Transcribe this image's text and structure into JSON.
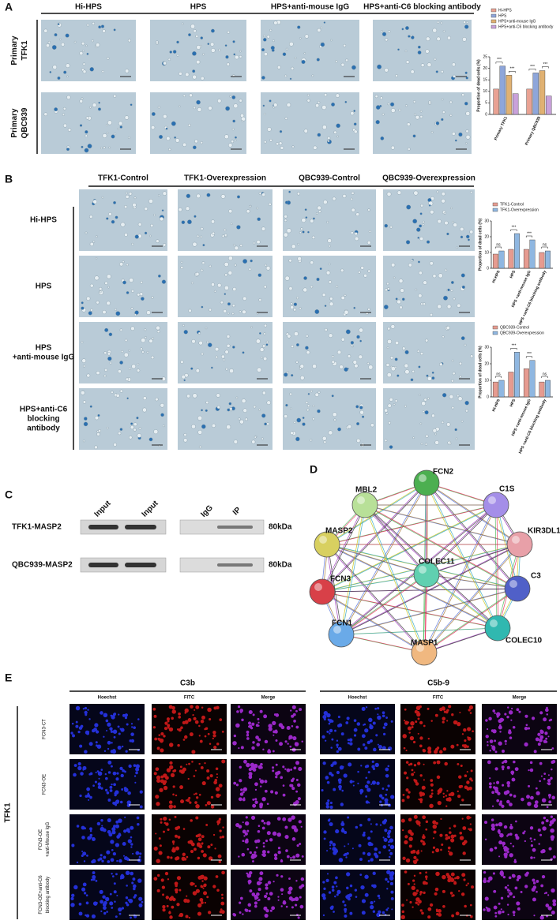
{
  "chart_data": [
    {
      "type": "bar",
      "y_label": "Proportion of dead cells (%)",
      "categories": [
        "Primary TFK1",
        "Primary QBC939"
      ],
      "series": [
        {
          "name": "Hi-HPS",
          "color": "#e9a293",
          "values": [
            11,
            11
          ]
        },
        {
          "name": "HPS",
          "color": "#8ea6da",
          "values": [
            21,
            18
          ]
        },
        {
          "name": "HPS+anti-mouse IgG",
          "color": "#e0b172",
          "values": [
            17,
            19
          ]
        },
        {
          "name": "HPS+anti-C6 blocking antibody",
          "color": "#c9a2da",
          "values": [
            9,
            8
          ]
        }
      ],
      "annotations": [
        "***",
        "***",
        "***",
        "***"
      ],
      "ylim": [
        0,
        25
      ],
      "yticks": [
        0,
        5,
        10,
        15,
        20,
        25
      ]
    },
    {
      "type": "bar",
      "y_label": "Proportion of dead cells (%)",
      "categories": [
        "Hi-HPS",
        "HPS",
        "HPS +anti-mouse IgG",
        "HPS +anti-C6 blocking antibody"
      ],
      "series": [
        {
          "name": "TFK1-Control",
          "color": "#e69b90",
          "values": [
            9,
            12,
            12,
            10
          ]
        },
        {
          "name": "TFK1-Overexpression",
          "color": "#8fb7e1",
          "values": [
            11,
            22,
            18,
            11
          ]
        }
      ],
      "annotations": [
        "ns",
        "***",
        "***",
        "ns"
      ],
      "ylim": [
        0,
        30
      ],
      "yticks": [
        0,
        10,
        20,
        30
      ]
    },
    {
      "type": "bar",
      "y_label": "Proportion of dead cells (%)",
      "categories": [
        "Hi-HPS",
        "HPS",
        "HPS +anti-mouse IgG",
        "HPS +anti-C6 blocking antibody"
      ],
      "series": [
        {
          "name": "QBC939-Control",
          "color": "#e69b90",
          "values": [
            9,
            15,
            17,
            9
          ]
        },
        {
          "name": "QBC939-Overexpression",
          "color": "#8fb7e1",
          "values": [
            10,
            27,
            22,
            10
          ]
        }
      ],
      "annotations": [
        "ns",
        "***",
        "***",
        "ns"
      ],
      "ylim": [
        0,
        30
      ],
      "yticks": [
        0,
        10,
        20,
        30
      ]
    }
  ],
  "panel_a": {
    "letter": "A",
    "columns": [
      "Hi-HPS",
      "HPS",
      "HPS+anti-mouse IgG",
      "HPS+anti-C6 blocking antibody"
    ],
    "rows": [
      [
        "Primary",
        "TFK1"
      ],
      [
        "Primary",
        "QBC939"
      ]
    ]
  },
  "panel_b": {
    "letter": "B",
    "columns": [
      "TFK1-Control",
      "TFK1-Overexpression",
      "QBC939-Control",
      "QBC939-Overexpression"
    ],
    "rows": [
      [
        "Hi-HPS"
      ],
      [
        "HPS"
      ],
      [
        "HPS",
        "+anti-mouse IgG"
      ],
      [
        "HPS+anti-C6",
        "blocking",
        "antibody"
      ]
    ]
  },
  "panel_c": {
    "letter": "C",
    "columns": [
      "Input",
      "Input",
      "IgG",
      "IP"
    ],
    "rows": [
      {
        "label": "TFK1-MASP2",
        "size": "80kDa"
      },
      {
        "label": "QBC939-MASP2",
        "size": "80kDa"
      }
    ]
  },
  "panel_d": {
    "letter": "D",
    "nodes": [
      {
        "label": "FCN2",
        "color": "#4caf50"
      },
      {
        "label": "C1S",
        "color": "#a48ee8"
      },
      {
        "label": "KIR3DL1",
        "color": "#e8a0a8"
      },
      {
        "label": "C3",
        "color": "#5060c8"
      },
      {
        "label": "COLEC10",
        "color": "#30b8b0"
      },
      {
        "label": "MASP1",
        "color": "#f0b880"
      },
      {
        "label": "FCN1",
        "color": "#6aaae8"
      },
      {
        "label": "FCN3",
        "color": "#d84048"
      },
      {
        "label": "MASP2",
        "color": "#d8d060"
      },
      {
        "label": "MBL2",
        "color": "#b8e098"
      },
      {
        "label": "COLEC11",
        "color": "#60d0b0"
      }
    ]
  },
  "panel_e": {
    "letter": "E",
    "groups": [
      "C3b",
      "C5b-9"
    ],
    "channels": [
      "Hoechst",
      "FITC",
      "Merge"
    ],
    "cell_line": "TFK1",
    "rows": [
      [
        "FCN3-CT"
      ],
      [
        "FCN3-OE"
      ],
      [
        "FCN3-OE",
        "+anti-Mouse IgG"
      ],
      [
        "FCN3-OE+anti-C6",
        "blocking antibody"
      ]
    ]
  }
}
